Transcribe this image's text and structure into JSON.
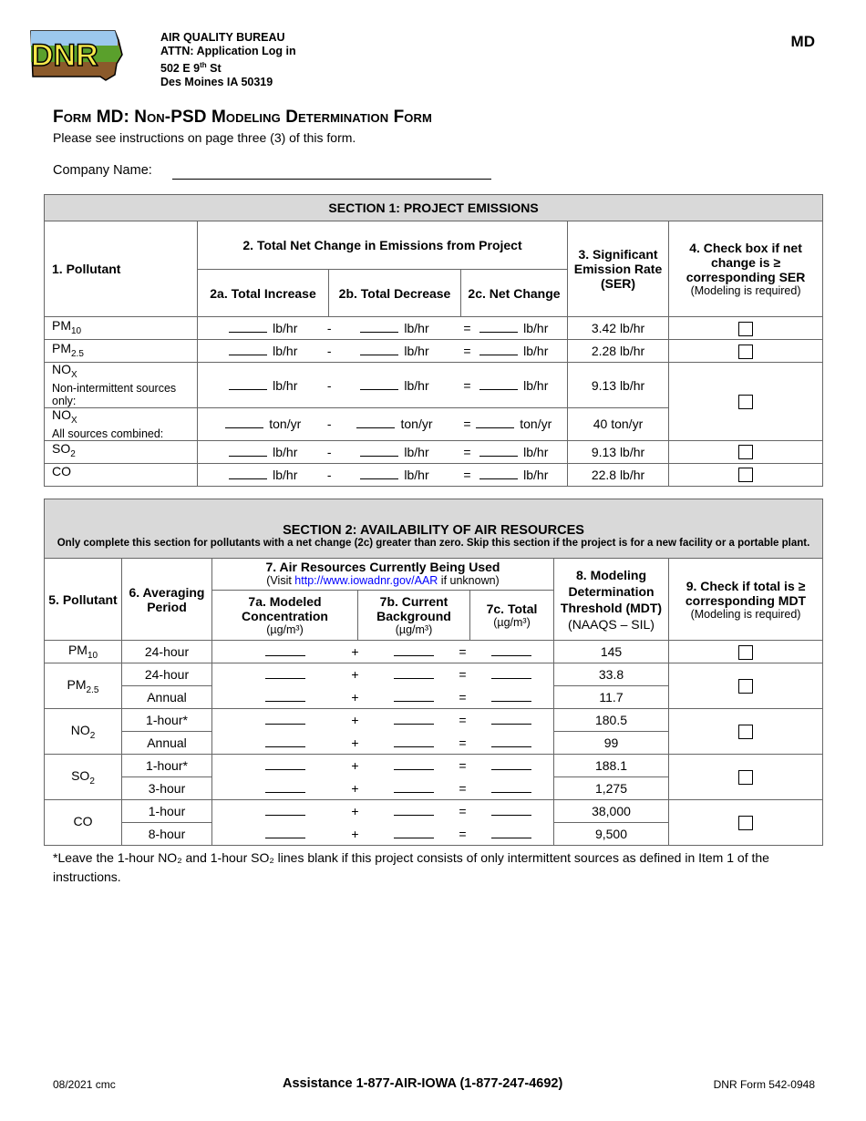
{
  "header": {
    "logo_text": "DNR",
    "address": [
      "AIR QUALITY BUREAU",
      "ATTN: Application Log in",
      "502 E 9th St",
      "Des Moines IA 50319"
    ],
    "form_code": "MD"
  },
  "title": "Form MD: Non-PSD Modeling Determination Form",
  "subtitle": "Please see instructions on page three (3) of this form.",
  "company_label": "Company Name:",
  "section1": {
    "title": "SECTION 1: PROJECT EMISSIONS",
    "col1": "1. Pollutant",
    "col2": "2. Total Net Change in Emissions from Project",
    "col2a": "2a. Total Increase",
    "col2b": "2b. Total Decrease",
    "col2c": "2c. Net Change",
    "col3": "3. Significant Emission Rate (SER)",
    "col4": "4. Check box if net change is ≥ corresponding SER",
    "col4_note": "(Modeling is required)",
    "minus": "-",
    "equals": "=",
    "rows": [
      {
        "pollutant": "PM",
        "sub": "10",
        "unit": "lb/hr",
        "ser": "3.42 lb/hr"
      },
      {
        "pollutant": "PM",
        "sub": "2.5",
        "unit": "lb/hr",
        "ser": "2.28 lb/hr"
      },
      {
        "pollutant": "NO",
        "sub": "X",
        "note": "Non-intermittent sources only:",
        "unit": "lb/hr",
        "ser": "9.13 lb/hr"
      },
      {
        "pollutant": "NO",
        "sub": "X",
        "note": "All sources combined:",
        "unit": "ton/yr",
        "ser": "40 ton/yr"
      },
      {
        "pollutant": "SO",
        "sub": "2",
        "unit": "lb/hr",
        "ser": "9.13 lb/hr"
      },
      {
        "pollutant": "CO",
        "sub": "",
        "unit": "lb/hr",
        "ser": "22.8 lb/hr"
      }
    ]
  },
  "section2": {
    "title": "SECTION 2: AVAILABILITY OF AIR RESOURCES",
    "instructions": "Only complete this section for pollutants with a net change (2c) greater than zero. Skip this section if the project is for a new facility or a portable plant.",
    "col5": "5. Pollutant",
    "col6": "6. Averaging Period",
    "col7": "7. Air Resources Currently Being Used",
    "col7_visit_pre": "(Visit ",
    "col7_link": "http://www.iowadnr.gov/AAR",
    "col7_visit_post": " if unknown)",
    "col7a": "7a. Modeled Concentration",
    "col7b": "7b. Current Background",
    "col7c": "7c. Total",
    "unit": "(µg/m³)",
    "col8": "8. Modeling Determination Threshold (MDT)",
    "col8_note": "(NAAQS – SIL)",
    "col9": "9. Check if total is ≥ corresponding MDT",
    "col9_note": "(Modeling is required)",
    "plus": "+",
    "equals": "=",
    "groups": [
      {
        "pollutant": "PM",
        "sub": "10",
        "rows": [
          {
            "period": "24-hour",
            "mdt": "145"
          }
        ]
      },
      {
        "pollutant": "PM",
        "sub": "2.5",
        "rows": [
          {
            "period": "24-hour",
            "mdt": "33.8"
          },
          {
            "period": "Annual",
            "mdt": "11.7"
          }
        ]
      },
      {
        "pollutant": "NO",
        "sub": "2",
        "rows": [
          {
            "period": "1-hour*",
            "mdt": "180.5"
          },
          {
            "period": "Annual",
            "mdt": "99"
          }
        ]
      },
      {
        "pollutant": "SO",
        "sub": "2",
        "rows": [
          {
            "period": "1-hour*",
            "mdt": "188.1"
          },
          {
            "period": "3-hour",
            "mdt": "1,275"
          }
        ]
      },
      {
        "pollutant": "CO",
        "sub": "",
        "rows": [
          {
            "period": "1-hour",
            "mdt": "38,000"
          },
          {
            "period": "8-hour",
            "mdt": "9,500"
          }
        ]
      }
    ],
    "footnote": "*Leave the 1-hour NO₂ and 1-hour SO₂ lines blank if this project consists of only intermittent sources as defined in Item 1 of the instructions."
  },
  "footer": {
    "left": "08/2021 cmc",
    "center": "Assistance 1-877-AIR-IOWA (1-877-247-4692)",
    "right": "DNR Form 542-0948"
  }
}
